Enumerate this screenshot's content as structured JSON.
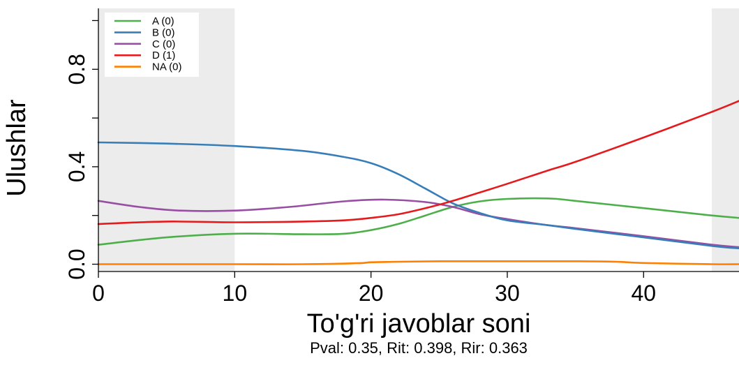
{
  "chart_data": {
    "type": "line",
    "xlabel": "To'g'ri javoblar soni",
    "ylabel": "Ulushlar",
    "subtitle": "Pval: 0.35, Rit: 0.398, Rir: 0.363",
    "xlim": [
      0,
      47
    ],
    "ylim": [
      -0.03,
      1.05
    ],
    "x_ticks": [
      "0",
      "10",
      "20",
      "30",
      "40"
    ],
    "y_ticks": [
      "0.0",
      "0.4",
      "0.8"
    ],
    "shaded_regions": [
      [
        0,
        10
      ],
      [
        45,
        47
      ]
    ],
    "legend_position": "top-left",
    "grid": false,
    "series": [
      {
        "name": "A (0)",
        "color": "#4daf4a",
        "x": [
          0,
          5,
          10,
          15,
          18,
          20,
          22,
          24,
          26,
          28,
          30,
          33,
          35,
          40,
          45,
          47
        ],
        "y": [
          0.08,
          0.11,
          0.125,
          0.123,
          0.125,
          0.14,
          0.165,
          0.2,
          0.235,
          0.258,
          0.268,
          0.27,
          0.26,
          0.23,
          0.2,
          0.19
        ]
      },
      {
        "name": "B (0)",
        "color": "#377eb8",
        "x": [
          0,
          5,
          10,
          15,
          18,
          20,
          22,
          24,
          26,
          28,
          30,
          33,
          35,
          40,
          45,
          47
        ],
        "y": [
          0.5,
          0.495,
          0.485,
          0.465,
          0.44,
          0.415,
          0.37,
          0.31,
          0.25,
          0.21,
          0.18,
          0.16,
          0.145,
          0.11,
          0.075,
          0.065
        ]
      },
      {
        "name": "C (0)",
        "color": "#984ea3",
        "x": [
          0,
          3,
          6,
          10,
          14,
          18,
          21,
          24,
          26,
          28,
          30,
          33,
          35,
          40,
          45,
          47
        ],
        "y": [
          0.26,
          0.235,
          0.22,
          0.22,
          0.235,
          0.258,
          0.265,
          0.255,
          0.235,
          0.205,
          0.185,
          0.16,
          0.148,
          0.115,
          0.08,
          0.07
        ]
      },
      {
        "name": "D (1)",
        "color": "#e41a1c",
        "x": [
          0,
          5,
          10,
          15,
          18,
          20,
          22,
          24,
          26,
          28,
          30,
          33,
          35,
          40,
          45,
          47
        ],
        "y": [
          0.165,
          0.175,
          0.172,
          0.175,
          0.18,
          0.19,
          0.205,
          0.23,
          0.26,
          0.295,
          0.33,
          0.385,
          0.42,
          0.52,
          0.625,
          0.67
        ]
      },
      {
        "name": "NA (0)",
        "color": "#ff7f00",
        "x": [
          0,
          10,
          15,
          19,
          20,
          22,
          25,
          30,
          35,
          38,
          40,
          45,
          47
        ],
        "y": [
          0.0,
          0.0,
          0.0,
          0.004,
          0.008,
          0.01,
          0.012,
          0.012,
          0.012,
          0.01,
          0.005,
          0.0,
          0.0
        ]
      }
    ]
  }
}
